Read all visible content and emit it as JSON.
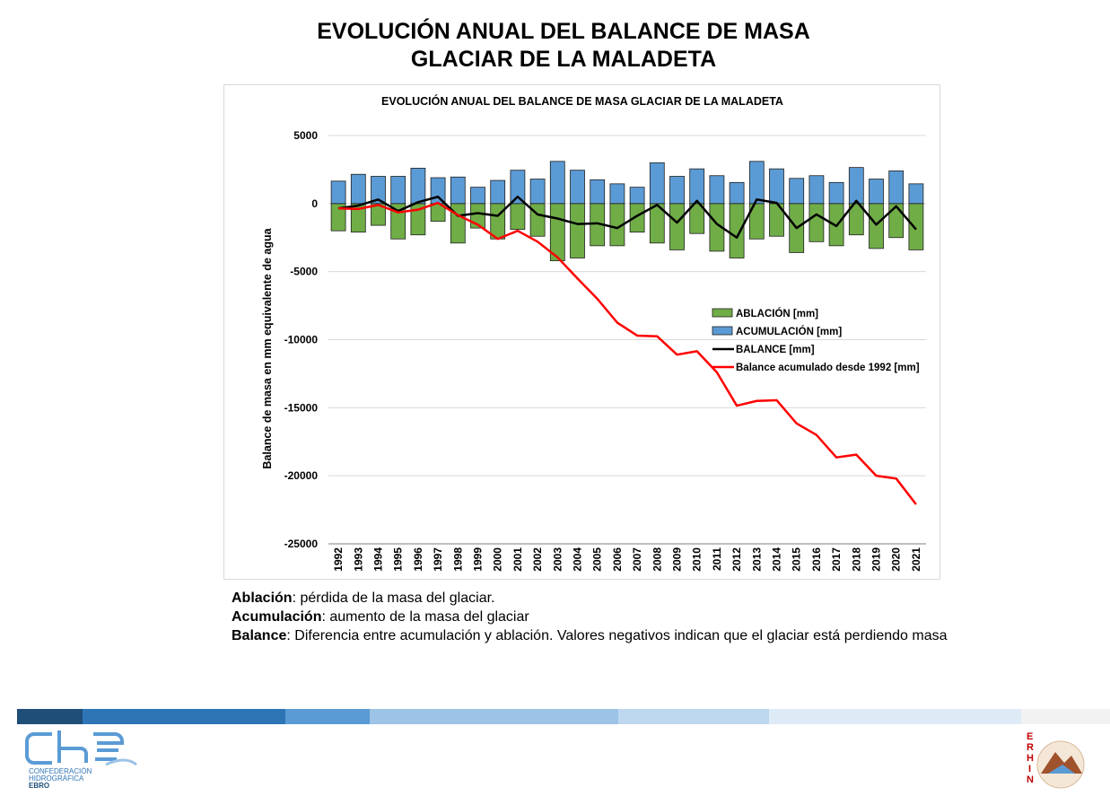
{
  "page": {
    "title_line1": "EVOLUCIÓN ANUAL DEL BALANCE DE MASA",
    "title_line2": "GLACIAR DE LA MALADETA"
  },
  "notes": [
    {
      "term": "Ablación",
      "text": ": pérdida de la masa del glaciar."
    },
    {
      "term": "Acumulación",
      "text": ": aumento de la masa del glaciar"
    },
    {
      "term": "Balance",
      "text": ": Diferencia entre acumulación y ablación. Valores negativos indican que el glaciar está perdiendo masa"
    }
  ],
  "footer": {
    "stripe_colors": [
      "#1f4e79",
      "#2e75b6",
      "#5b9bd5",
      "#9dc3e6",
      "#bdd7ee",
      "#deebf7",
      "#f2f2f2"
    ],
    "che_logo": {
      "letters": "che",
      "line1": "CONFEDERACIÓN",
      "line2": "HIDROGRÁFICA",
      "line3": "EBRO"
    },
    "erhin_logo": {
      "letters": [
        "E",
        "R",
        "H",
        "I",
        "N"
      ]
    }
  },
  "chart_data": {
    "type": "bar",
    "title": "EVOLUCIÓN ANUAL DEL BALANCE DE MASA GLACIAR DE LA MALADETA",
    "ylabel": "Balance de masa en mm equivalente de agua",
    "xlabel": "",
    "ylim": [
      -25000,
      5000
    ],
    "yticks": [
      5000,
      0,
      -5000,
      -10000,
      -15000,
      -20000,
      -25000
    ],
    "grid": true,
    "legend_position": "right-middle",
    "categories": [
      "1992",
      "1993",
      "1994",
      "1995",
      "1996",
      "1997",
      "1998",
      "1999",
      "2000",
      "2001",
      "2002",
      "2003",
      "2004",
      "2005",
      "2006",
      "2007",
      "2008",
      "2009",
      "2010",
      "2011",
      "2012",
      "2013",
      "2014",
      "2015",
      "2016",
      "2017",
      "2018",
      "2019",
      "2020",
      "2021"
    ],
    "series": [
      {
        "name": "ABLACIÓN [mm]",
        "kind": "bar",
        "color": "#70ad47",
        "values": [
          -2000,
          -2100,
          -1600,
          -2600,
          -2300,
          -1300,
          -2900,
          -1800,
          -2600,
          -1900,
          -2400,
          -4200,
          -4000,
          -3100,
          -3100,
          -2100,
          -2900,
          -3400,
          -2200,
          -3500,
          -4000,
          -2600,
          -2400,
          -3600,
          -2800,
          -3100,
          -2300,
          -3300,
          -2500,
          -3400
        ]
      },
      {
        "name": "ACUMULACIÓN [mm]",
        "kind": "bar",
        "color": "#5b9bd5",
        "values": [
          1650,
          2150,
          2000,
          2000,
          2600,
          1900,
          1950,
          1200,
          1700,
          2450,
          1800,
          3100,
          2450,
          1750,
          1450,
          1200,
          3000,
          2000,
          2550,
          2050,
          1550,
          3100,
          2550,
          1850,
          2050,
          1550,
          2650,
          1800,
          2400,
          1450
        ]
      },
      {
        "name": "BALANCE [mm]",
        "kind": "line",
        "color": "#000000",
        "values": [
          -350,
          -150,
          300,
          -550,
          100,
          500,
          -900,
          -700,
          -900,
          500,
          -800,
          -1100,
          -1500,
          -1450,
          -1800,
          -900,
          -100,
          -1400,
          200,
          -1500,
          -2500,
          300,
          50,
          -1800,
          -800,
          -1650,
          200,
          -1550,
          -200,
          -1900
        ]
      },
      {
        "name": "Balance acumulado desde 1992 [mm]",
        "kind": "line",
        "color": "#ff0000",
        "values": [
          -350,
          -400,
          -100,
          -650,
          -450,
          50,
          -850,
          -1550,
          -2600,
          -2000,
          -2800,
          -3950,
          -5500,
          -7000,
          -8750,
          -9700,
          -9750,
          -11100,
          -10850,
          -12400,
          -14850,
          -14500,
          -14450,
          -16150,
          -17000,
          -18650,
          -18450,
          -20000,
          -20200,
          -22100
        ]
      }
    ]
  }
}
